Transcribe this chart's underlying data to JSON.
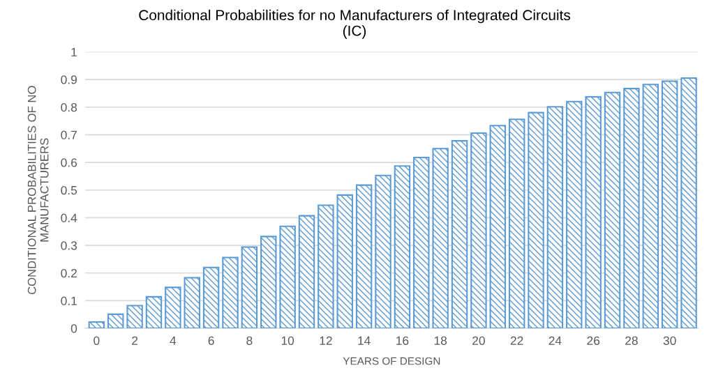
{
  "chart_data": {
    "type": "bar",
    "title": "Conditional Probabilities for no Manufacturers of Integrated Circuits\n(IC)",
    "xlabel": "YEARS OF DESIGN",
    "ylabel": "CONDITIONAL PROBABILITIES OF NO\nMANUFACTURERS",
    "categories": [
      "0",
      null,
      "2",
      null,
      "4",
      null,
      "6",
      null,
      "8",
      null,
      "10",
      null,
      "12",
      null,
      "14",
      null,
      "16",
      null,
      "18",
      null,
      "20",
      null,
      "22",
      null,
      "24",
      null,
      "26",
      null,
      "28",
      null,
      "30",
      null
    ],
    "series": [
      {
        "color": "#5b9bd5",
        "values": [
          0.023,
          0.051,
          0.082,
          0.114,
          0.148,
          0.183,
          0.22,
          0.256,
          0.294,
          0.332,
          0.369,
          0.407,
          0.445,
          0.482,
          0.518,
          0.553,
          0.587,
          0.618,
          0.65,
          0.678,
          0.706,
          0.733,
          0.756,
          0.78,
          0.801,
          0.82,
          0.837,
          0.853,
          0.867,
          0.882,
          0.894,
          0.905
        ]
      }
    ],
    "ylim": [
      0,
      1
    ],
    "yticks": [
      0,
      0.1,
      0.2,
      0.3,
      0.4,
      0.5,
      0.6,
      0.7,
      0.8,
      0.9,
      1
    ],
    "grid": "y",
    "legend": false
  }
}
